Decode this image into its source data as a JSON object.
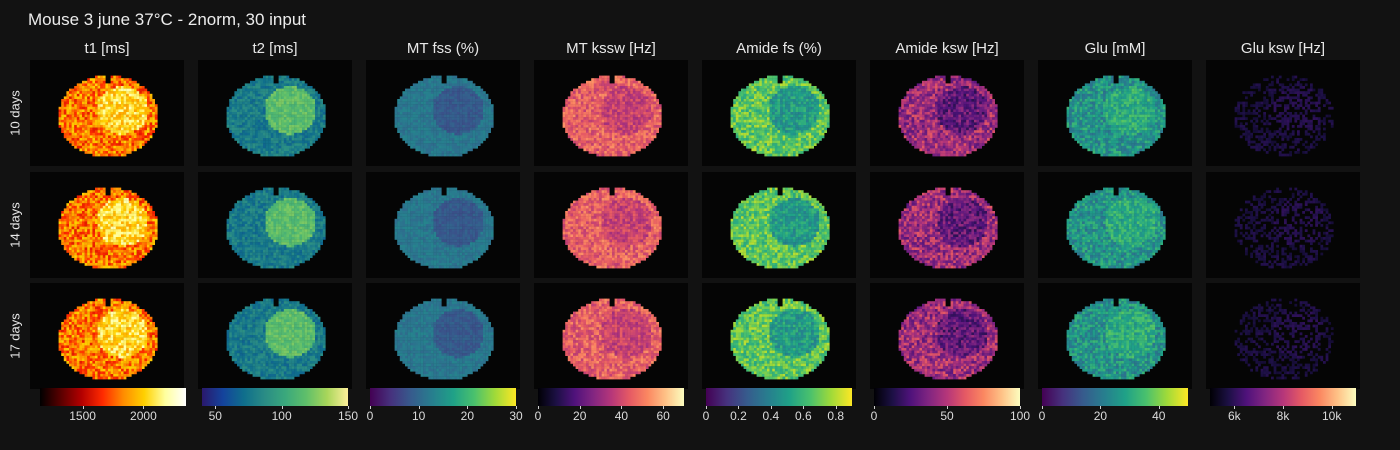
{
  "figure": {
    "title": "Mouse 3 june 37°C - 2norm, 30 input"
  },
  "rows": [
    {
      "label": "10 days"
    },
    {
      "label": "14 days"
    },
    {
      "label": "17 days"
    }
  ],
  "chart_data": {
    "type": "heatmap",
    "panels_layout": "3 rows x 8 columns",
    "columns": [
      {
        "title": "t1 [ms]",
        "colormap": "hot",
        "colorbar_range": [
          1150,
          2350
        ],
        "ticks": [
          "1500",
          "2000"
        ],
        "tick_values": [
          1500,
          2000
        ]
      },
      {
        "title": "t2 [ms]",
        "colormap": "haline",
        "colorbar_range": [
          40,
          150
        ],
        "ticks": [
          "50",
          "100",
          "150"
        ],
        "tick_values": [
          50,
          100,
          150
        ]
      },
      {
        "title": "MT fss (%)",
        "colormap": "viridis",
        "colorbar_range": [
          0,
          30
        ],
        "ticks": [
          "0",
          "10",
          "20",
          "30"
        ],
        "tick_values": [
          0,
          10,
          20,
          30
        ]
      },
      {
        "title": "MT kssw [Hz]",
        "colormap": "magma",
        "colorbar_range": [
          0,
          70
        ],
        "ticks": [
          "0",
          "20",
          "40",
          "60"
        ],
        "tick_values": [
          0,
          20,
          40,
          60
        ]
      },
      {
        "title": "Amide fs (%)",
        "colormap": "viridis",
        "colorbar_range": [
          0,
          0.9
        ],
        "ticks": [
          "0",
          "0.2",
          "0.4",
          "0.6",
          "0.8"
        ],
        "tick_values": [
          0,
          0.2,
          0.4,
          0.6,
          0.8
        ]
      },
      {
        "title": "Amide ksw [Hz]",
        "colormap": "magma",
        "colorbar_range": [
          0,
          100
        ],
        "ticks": [
          "0",
          "50",
          "100"
        ],
        "tick_values": [
          0,
          50,
          100
        ]
      },
      {
        "title": "Glu [mM]",
        "colormap": "viridis",
        "colorbar_range": [
          0,
          50
        ],
        "ticks": [
          "0",
          "20",
          "40"
        ],
        "tick_values": [
          0,
          20,
          40
        ]
      },
      {
        "title": "Glu ksw [Hz]",
        "colormap": "magma",
        "colorbar_range": [
          5000,
          11000
        ],
        "ticks": [
          "6k",
          "8k",
          "10k"
        ],
        "tick_values": [
          6000,
          8000,
          10000
        ]
      }
    ]
  },
  "colors": {
    "background": "#121212",
    "panel_background": "#050505"
  }
}
